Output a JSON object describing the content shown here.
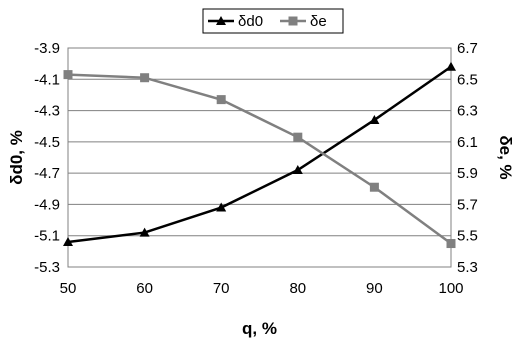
{
  "chart_data": {
    "type": "line",
    "x": [
      50,
      60,
      70,
      80,
      90,
      100
    ],
    "xlabel": "q, %",
    "ylabel_left": "δd0, %",
    "ylabel_right": "δe, %",
    "xlim": [
      50,
      100
    ],
    "ylim_left": [
      -5.3,
      -3.9
    ],
    "ylim_right": [
      5.3,
      6.7
    ],
    "x_ticks": [
      "50",
      "60",
      "70",
      "80",
      "90",
      "100"
    ],
    "y_ticks_left": [
      "-3.9",
      "-4.1",
      "-4.3",
      "-4.5",
      "-4.7",
      "-4.9",
      "-5.1",
      "-5.3"
    ],
    "y_ticks_right": [
      "6.7",
      "6.5",
      "6.3",
      "6.1",
      "5.9",
      "5.7",
      "5.5",
      "5.3"
    ],
    "grid": "horizontal",
    "legend_position": "top",
    "series": [
      {
        "name": "δd0",
        "axis": "left",
        "marker": "triangle",
        "color": "#000000",
        "values": [
          -5.14,
          -5.08,
          -4.92,
          -4.68,
          -4.36,
          -4.02
        ]
      },
      {
        "name": "δe",
        "axis": "right",
        "marker": "square",
        "color": "#808080",
        "values": [
          6.53,
          6.51,
          6.37,
          6.13,
          5.81,
          5.45
        ]
      }
    ]
  }
}
